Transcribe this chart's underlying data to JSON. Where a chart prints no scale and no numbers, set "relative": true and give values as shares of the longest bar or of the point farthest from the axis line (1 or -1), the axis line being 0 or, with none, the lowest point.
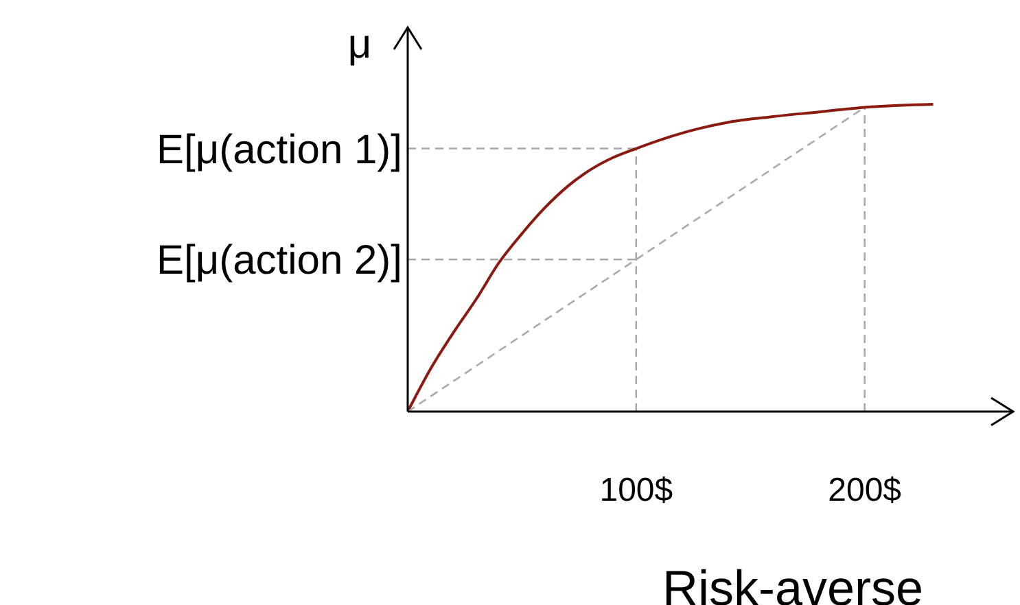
{
  "chart_data": {
    "type": "line",
    "xlabel": "Risk-averse",
    "ylabel": "μ",
    "relative": true,
    "xlim": [
      0,
      265
    ],
    "xticks": [
      {
        "value": 100,
        "label": "100$"
      },
      {
        "value": 200,
        "label": "200$"
      }
    ],
    "series": [
      {
        "color": "#8b1a10",
        "x": [
          0,
          10,
          20,
          30,
          40,
          50,
          60,
          70,
          80,
          90,
          100,
          120,
          140,
          160,
          180,
          200,
          230
        ],
        "values": [
          0,
          0.139,
          0.257,
          0.366,
          0.485,
          0.579,
          0.663,
          0.733,
          0.787,
          0.827,
          0.856,
          0.906,
          0.941,
          0.96,
          0.975,
          0.99,
          1
        ]
      },
      {
        "color": "#aaaaaa",
        "line_style": "dashed",
        "x": [
          0,
          200
        ],
        "values": [
          0,
          0.99
        ]
      }
    ],
    "ref_lines": [
      {
        "axis": "x",
        "value": 100,
        "color": "#aaaaaa",
        "line_style": "dashed"
      },
      {
        "axis": "x",
        "value": 200,
        "color": "#aaaaaa",
        "line_style": "dashed"
      },
      {
        "axis": "y",
        "value": 0.856,
        "label": "E[μ(action 1)]",
        "color": "#aaaaaa",
        "line_style": "dashed"
      },
      {
        "axis": "y",
        "value": 0.495,
        "label": "E[μ(action 2)]",
        "color": "#aaaaaa",
        "line_style": "dashed"
      }
    ],
    "grid": false,
    "legend": false,
    "marker": "none"
  }
}
